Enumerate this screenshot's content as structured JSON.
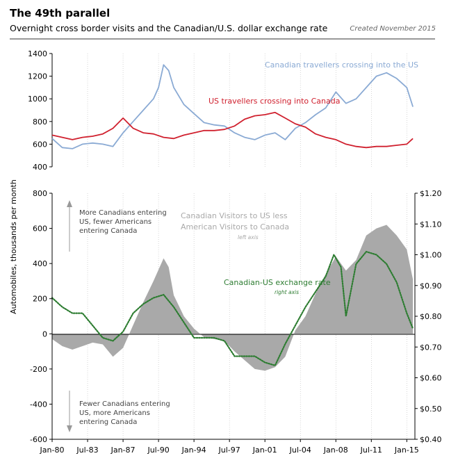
{
  "header": {
    "title": "The 49th parallel",
    "subtitle": "Overnight cross border visits and the Canadian/U.S. dollar exchange rate",
    "created": "Created November 2015"
  },
  "labels": {
    "y_axis": "Automobiles, thousands per month",
    "canadians_series": "Canadian travellers crossing into the US",
    "americans_series": "US travellers crossing into Canada",
    "diff_line1": "Canadian Visitors to US less",
    "diff_line2": "American Visitors to Canada",
    "diff_note": "left axis",
    "fx_series": "Canadian-US exchange rate",
    "fx_note": "right axis",
    "up_line1": "More Canadians entering",
    "up_line2": "US, fewer Americans",
    "up_line3": "entering Canada",
    "down_line1": "Fewer Canadians entering",
    "down_line2": "US, more Americans",
    "down_line3": "entering Canada"
  },
  "colors": {
    "canadians": "#8aaad4",
    "americans": "#d0202e",
    "difference": "#a9a9a9",
    "exchange": "#2e7d32",
    "arrow": "#999999"
  },
  "chart_data": [
    {
      "type": "line",
      "ylim": [
        400,
        1400
      ],
      "yticks": [
        "400",
        "600",
        "800",
        "1000",
        "1200",
        "1400"
      ],
      "series": [
        {
          "name": "Canadian travellers crossing into the US",
          "x": [
            1980,
            1981,
            1982,
            1983,
            1984,
            1985,
            1986,
            1987,
            1988,
            1989,
            1990,
            1990.5,
            1991,
            1991.5,
            1992,
            1993,
            1994,
            1995,
            1996,
            1997,
            1998,
            1999,
            2000,
            2001,
            2002,
            2003,
            2004,
            2005,
            2006,
            2007,
            2008,
            2009,
            2010,
            2011,
            2012,
            2013,
            2014,
            2015,
            2015.6
          ],
          "values": [
            650,
            570,
            560,
            600,
            610,
            600,
            580,
            700,
            800,
            900,
            1000,
            1100,
            1300,
            1250,
            1100,
            950,
            870,
            790,
            770,
            760,
            700,
            660,
            640,
            680,
            700,
            640,
            740,
            790,
            860,
            920,
            1060,
            960,
            1000,
            1100,
            1200,
            1230,
            1180,
            1100,
            930
          ]
        },
        {
          "name": "US travellers crossing into Canada",
          "x": [
            1980,
            1981,
            1982,
            1983,
            1984,
            1985,
            1986,
            1987,
            1988,
            1989,
            1990,
            1991,
            1992,
            1993,
            1994,
            1995,
            1996,
            1997,
            1998,
            1999,
            2000,
            2001,
            2002,
            2003,
            2004,
            2005,
            2006,
            2007,
            2008,
            2009,
            2010,
            2011,
            2012,
            2013,
            2014,
            2015,
            2015.6
          ],
          "values": [
            680,
            660,
            640,
            660,
            670,
            690,
            740,
            830,
            740,
            700,
            690,
            660,
            650,
            680,
            700,
            720,
            720,
            730,
            760,
            820,
            850,
            860,
            880,
            830,
            780,
            750,
            690,
            660,
            640,
            600,
            580,
            570,
            580,
            580,
            590,
            600,
            650
          ]
        }
      ]
    },
    {
      "type": "area",
      "ylim": [
        -600,
        800
      ],
      "yticks": [
        "-600",
        "-400",
        "-200",
        "0",
        "200",
        "400",
        "600",
        "800"
      ],
      "y2lim": [
        0.4,
        1.2
      ],
      "y2ticks": [
        "$0.40",
        "$0.50",
        "$0.60",
        "$0.70",
        "$0.80",
        "$0.90",
        "$1.00",
        "$1.10",
        "$1.20"
      ],
      "xlim": [
        1980,
        2015.8
      ],
      "xticks": [
        "Jan-80",
        "Jul-83",
        "Jan-87",
        "Jul-90",
        "Jan-94",
        "Jul-97",
        "Jan-01",
        "Jul-04",
        "Jan-08",
        "Jul-11",
        "Jan-15"
      ],
      "series": [
        {
          "name": "Canadian Visitors to US less American Visitors to Canada",
          "x": [
            1980,
            1981,
            1982,
            1983,
            1984,
            1985,
            1986,
            1987,
            1988,
            1989,
            1990,
            1991,
            1991.5,
            1992,
            1993,
            1994,
            1995,
            1996,
            1997,
            1998,
            1999,
            2000,
            2001,
            2002,
            2003,
            2004,
            2005,
            2006,
            2007,
            2008,
            2009,
            2010,
            2011,
            2012,
            2013,
            2014,
            2015,
            2015.6
          ],
          "values": [
            -30,
            -70,
            -90,
            -70,
            -50,
            -60,
            -130,
            -80,
            50,
            180,
            300,
            430,
            380,
            220,
            100,
            30,
            -20,
            -30,
            -40,
            -100,
            -150,
            -200,
            -210,
            -190,
            -130,
            20,
            100,
            230,
            340,
            440,
            360,
            420,
            560,
            600,
            620,
            560,
            480,
            310
          ]
        },
        {
          "name": "Canadian-US exchange rate",
          "x": [
            1980,
            1981,
            1982,
            1983,
            1984,
            1985,
            1986,
            1987,
            1988,
            1989,
            1990,
            1991,
            1992,
            1993,
            1994,
            1995,
            1996,
            1997,
            1998,
            1999,
            2000,
            2001,
            2002,
            2003,
            2004,
            2005,
            2006,
            2007,
            2007.8,
            2008.5,
            2009,
            2010,
            2011,
            2012,
            2013,
            2014,
            2015,
            2015.6
          ],
          "values": [
            0.86,
            0.83,
            0.81,
            0.81,
            0.77,
            0.73,
            0.72,
            0.75,
            0.81,
            0.84,
            0.86,
            0.87,
            0.83,
            0.78,
            0.73,
            0.73,
            0.73,
            0.72,
            0.67,
            0.67,
            0.67,
            0.65,
            0.64,
            0.71,
            0.77,
            0.83,
            0.88,
            0.93,
            1.0,
            0.96,
            0.8,
            0.97,
            1.01,
            1.0,
            0.97,
            0.91,
            0.81,
            0.76
          ]
        }
      ]
    }
  ]
}
